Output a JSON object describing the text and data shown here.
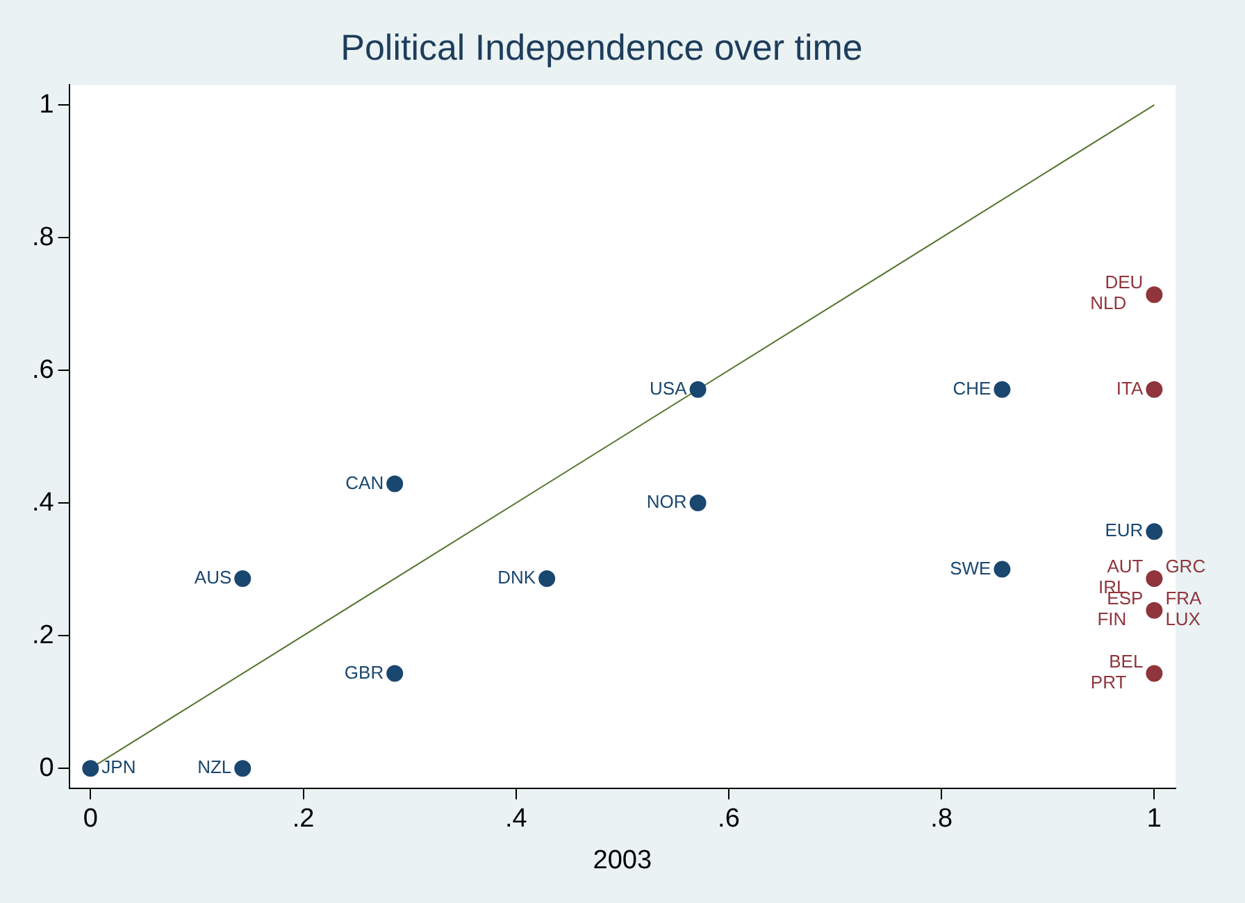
{
  "chart_data": {
    "type": "scatter",
    "title": "Political Independence over time",
    "xlabel": "2003",
    "xlim": [
      -0.02,
      1.02
    ],
    "ylim": [
      -0.03,
      1.03
    ],
    "xticks": [
      0,
      {
        "value": 0.2,
        "label": ".2"
      },
      {
        "value": 0.4,
        "label": ".4"
      },
      {
        "value": 0.6,
        "label": ".6"
      },
      {
        "value": 0.8,
        "label": ".8"
      },
      1
    ],
    "yticks": [
      0,
      {
        "value": 0.2,
        "label": ".2"
      },
      {
        "value": 0.4,
        "label": ".4"
      },
      {
        "value": 0.6,
        "label": ".6"
      },
      {
        "value": 0.8,
        "label": ".8"
      },
      1
    ],
    "marker": "circle",
    "series": [
      {
        "color": "#1a476f",
        "x": [
          0,
          0.143,
          0.143,
          0.286,
          0.286,
          0.429,
          0.571,
          0.571,
          0.857,
          0.857,
          1
        ],
        "values": [
          0,
          0,
          0.286,
          0.143,
          0.429,
          0.286,
          0.571,
          0.4,
          0.571,
          0.3,
          0.357
        ]
      },
      {
        "color": "#90353b",
        "x": [
          1,
          1,
          1,
          1,
          1
        ],
        "values": [
          0.714,
          0.571,
          0.286,
          0.238,
          0.143
        ]
      },
      {
        "type": "line",
        "color": "#55752f",
        "x": [
          0,
          1
        ],
        "values": [
          0,
          1
        ],
        "marker": "none"
      }
    ],
    "annotations": [
      {
        "text": "JPN",
        "x": 0,
        "y": 0
      },
      {
        "text": "NZL",
        "x": 0.143,
        "y": 0
      },
      {
        "text": "AUS",
        "x": 0.143,
        "y": 0.286
      },
      {
        "text": "GBR",
        "x": 0.286,
        "y": 0.143
      },
      {
        "text": "CAN",
        "x": 0.286,
        "y": 0.429
      },
      {
        "text": "DNK",
        "x": 0.429,
        "y": 0.286
      },
      {
        "text": "USA",
        "x": 0.571,
        "y": 0.571
      },
      {
        "text": "NOR",
        "x": 0.571,
        "y": 0.4
      },
      {
        "text": "CHE",
        "x": 0.857,
        "y": 0.571
      },
      {
        "text": "SWE",
        "x": 0.857,
        "y": 0.3
      },
      {
        "text": "EUR",
        "x": 1,
        "y": 0.357
      },
      {
        "text": "DEU",
        "x": 1,
        "y": 0.714
      },
      {
        "text": "NLD",
        "x": 1,
        "y": 0.714
      },
      {
        "text": "ITA",
        "x": 1,
        "y": 0.571
      },
      {
        "text": "AUT",
        "x": 1,
        "y": 0.286
      },
      {
        "text": "GRC",
        "x": 1,
        "y": 0.286
      },
      {
        "text": "IRL",
        "x": 1,
        "y": 0.286
      },
      {
        "text": "ESP",
        "x": 1,
        "y": 0.238
      },
      {
        "text": "FRA",
        "x": 1,
        "y": 0.238
      },
      {
        "text": "FIN",
        "x": 1,
        "y": 0.238
      },
      {
        "text": "LUX",
        "x": 1,
        "y": 0.238
      },
      {
        "text": "BEL",
        "x": 1,
        "y": 0.143
      },
      {
        "text": "PRT",
        "x": 1,
        "y": 0.143
      }
    ]
  }
}
